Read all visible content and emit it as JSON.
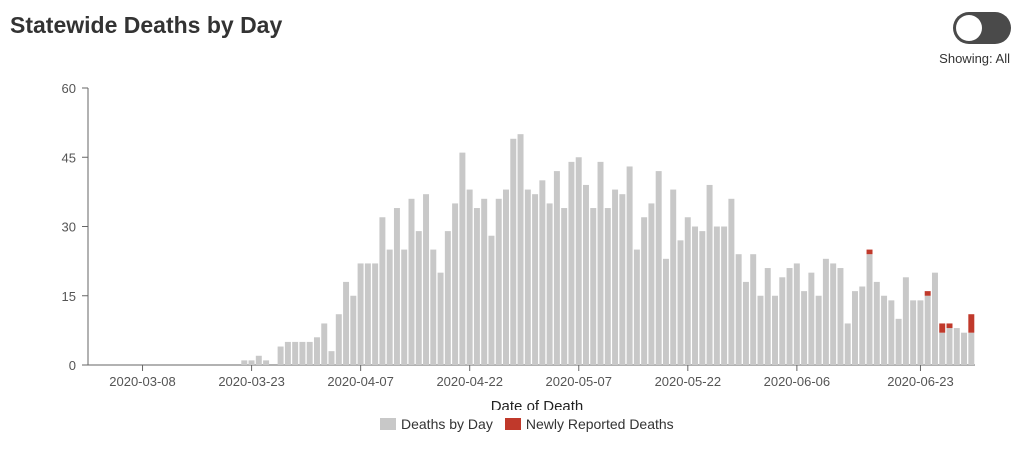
{
  "header": {
    "title": "Statewide Deaths by Day"
  },
  "toggle": {
    "showing_text": "Showing: All"
  },
  "colors": {
    "base": "#c8c8c8",
    "new": "#c0392b",
    "axis": "#666666"
  },
  "chart_data": {
    "type": "bar",
    "stacked": true,
    "xlabel": "Date of Death",
    "ylabel": "",
    "ylim": [
      0,
      60
    ],
    "yticks": [
      0,
      15,
      30,
      45,
      60
    ],
    "start_date": "2020-03-01",
    "xtick_labels": [
      "2020-03-08",
      "2020-03-23",
      "2020-04-07",
      "2020-04-22",
      "2020-05-07",
      "2020-05-22",
      "2020-06-06",
      "2020-06-23"
    ],
    "legend": [
      "Deaths by Day",
      "Newly Reported Deaths"
    ],
    "series": [
      {
        "name": "Deaths by Day",
        "color": "#c8c8c8",
        "values": [
          0,
          0,
          0,
          0,
          0,
          0,
          0,
          0,
          0,
          0,
          0,
          0,
          0,
          0,
          0,
          0,
          0,
          0,
          0,
          0,
          0,
          1,
          1,
          2,
          1,
          0,
          4,
          5,
          5,
          5,
          5,
          6,
          9,
          3,
          11,
          18,
          15,
          22,
          22,
          22,
          32,
          25,
          34,
          25,
          36,
          29,
          37,
          25,
          20,
          29,
          35,
          46,
          38,
          34,
          36,
          28,
          36,
          38,
          49,
          50,
          38,
          37,
          40,
          35,
          42,
          34,
          44,
          45,
          39,
          34,
          44,
          34,
          38,
          37,
          43,
          25,
          32,
          35,
          42,
          23,
          38,
          27,
          32,
          30,
          29,
          39,
          30,
          30,
          36,
          24,
          18,
          24,
          15,
          21,
          15,
          19,
          21,
          22,
          16,
          20,
          15,
          23,
          22,
          21,
          9,
          16,
          17,
          24,
          18,
          15,
          14,
          10,
          19,
          14,
          14,
          15,
          20,
          7,
          8,
          8,
          7,
          7
        ]
      },
      {
        "name": "Newly Reported Deaths",
        "color": "#c0392b",
        "values": [
          0,
          0,
          0,
          0,
          0,
          0,
          0,
          0,
          0,
          0,
          0,
          0,
          0,
          0,
          0,
          0,
          0,
          0,
          0,
          0,
          0,
          0,
          0,
          0,
          0,
          0,
          0,
          0,
          0,
          0,
          0,
          0,
          0,
          0,
          0,
          0,
          0,
          0,
          0,
          0,
          0,
          0,
          0,
          0,
          0,
          0,
          0,
          0,
          0,
          0,
          0,
          0,
          0,
          0,
          0,
          0,
          0,
          0,
          0,
          0,
          0,
          0,
          0,
          0,
          0,
          0,
          0,
          0,
          0,
          0,
          0,
          0,
          0,
          0,
          0,
          0,
          0,
          0,
          0,
          0,
          0,
          0,
          0,
          0,
          0,
          0,
          0,
          0,
          0,
          0,
          0,
          0,
          0,
          0,
          0,
          0,
          0,
          0,
          0,
          0,
          0,
          0,
          0,
          0,
          0,
          0,
          0,
          1,
          0,
          0,
          0,
          0,
          0,
          0,
          0,
          1,
          0,
          2,
          1,
          0,
          0,
          4
        ]
      }
    ]
  }
}
